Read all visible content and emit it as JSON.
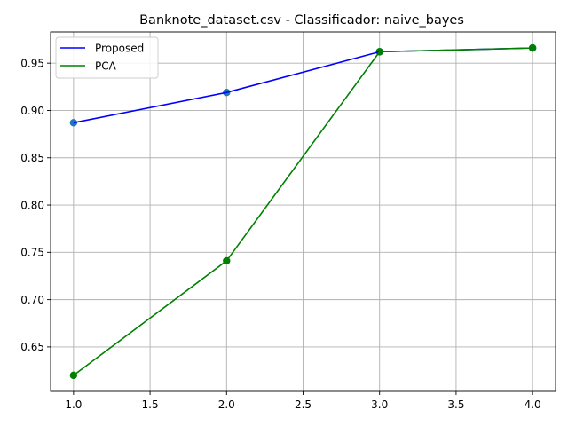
{
  "chart_data": {
    "type": "line",
    "title": "Banknote_dataset.csv - Classificador: naive_bayes",
    "xlabel": "",
    "ylabel": "",
    "xlim": [
      0.85,
      4.15
    ],
    "ylim": [
      0.603,
      0.983
    ],
    "xticks": [
      1.0,
      1.5,
      2.0,
      2.5,
      3.0,
      3.5,
      4.0
    ],
    "xtick_labels": [
      "1.0",
      "1.5",
      "2.0",
      "2.5",
      "3.0",
      "3.5",
      "4.0"
    ],
    "yticks": [
      0.65,
      0.7,
      0.75,
      0.8,
      0.85,
      0.9,
      0.95
    ],
    "ytick_labels": [
      "0.65",
      "0.70",
      "0.75",
      "0.80",
      "0.85",
      "0.90",
      "0.95"
    ],
    "grid": true,
    "legend_position": "upper-left",
    "x": [
      1,
      2,
      3,
      4
    ],
    "series": [
      {
        "name": "Proposed",
        "values": [
          0.887,
          0.919,
          0.962,
          0.966
        ],
        "line_color": "#0000ff",
        "marker_color": "#1f77b4"
      },
      {
        "name": "PCA",
        "values": [
          0.62,
          0.741,
          0.962,
          0.966
        ],
        "line_color": "#008000",
        "marker_color": "#008000"
      }
    ]
  }
}
